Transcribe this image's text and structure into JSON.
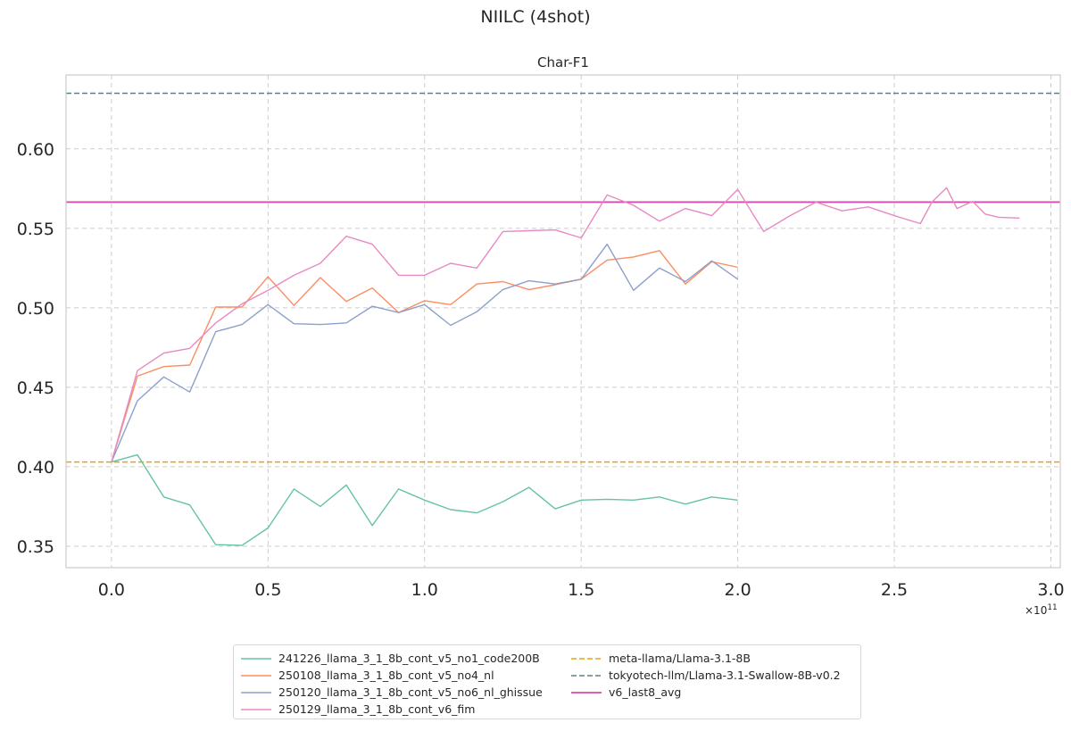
{
  "figure_title": "NIILC (4shot)",
  "chart_data": {
    "type": "line",
    "title": "Char-F1",
    "xlabel": "",
    "ylabel": "",
    "x_offset_label": "×10",
    "x_offset_exp": "11",
    "xlim": [
      -0.145,
      3.03
    ],
    "ylim": [
      0.3365,
      0.6465
    ],
    "xticks": [
      0.0,
      0.5,
      1.0,
      1.5,
      2.0,
      2.5,
      3.0
    ],
    "xtick_labels": [
      "0.0",
      "0.5",
      "1.0",
      "1.5",
      "2.0",
      "2.5",
      "3.0"
    ],
    "yticks": [
      0.35,
      0.4,
      0.45,
      0.5,
      0.55,
      0.6
    ],
    "ytick_labels": [
      "0.35",
      "0.40",
      "0.45",
      "0.50",
      "0.55",
      "0.60"
    ],
    "grid": true,
    "legend_position": "below",
    "series": [
      {
        "name": "241226_llama_3_1_8b_cont_v5_no1_code200B",
        "color": "#66c2a5",
        "dash": "solid",
        "x": [
          0.0,
          0.083,
          0.167,
          0.25,
          0.333,
          0.417,
          0.5,
          0.583,
          0.667,
          0.75,
          0.833,
          0.917,
          1.0,
          1.083,
          1.167,
          1.25,
          1.333,
          1.417,
          1.5,
          1.583,
          1.667,
          1.75,
          1.833,
          1.917,
          2.0
        ],
        "y": [
          0.403,
          0.4075,
          0.381,
          0.376,
          0.351,
          0.3505,
          0.3615,
          0.386,
          0.375,
          0.3885,
          0.363,
          0.386,
          0.379,
          0.373,
          0.371,
          0.378,
          0.387,
          0.3735,
          0.379,
          0.3795,
          0.379,
          0.381,
          0.3765,
          0.381,
          0.379
        ]
      },
      {
        "name": "250108_llama_3_1_8b_cont_v5_no4_nl",
        "color": "#fc8d62",
        "dash": "solid",
        "x": [
          0.0,
          0.083,
          0.167,
          0.25,
          0.333,
          0.417,
          0.5,
          0.583,
          0.667,
          0.75,
          0.833,
          0.917,
          1.0,
          1.083,
          1.167,
          1.25,
          1.333,
          1.417,
          1.5,
          1.583,
          1.667,
          1.75,
          1.833,
          1.917,
          2.0
        ],
        "y": [
          0.403,
          0.457,
          0.463,
          0.464,
          0.5005,
          0.5005,
          0.5195,
          0.5015,
          0.519,
          0.504,
          0.5125,
          0.497,
          0.5045,
          0.502,
          0.515,
          0.5165,
          0.5115,
          0.5145,
          0.518,
          0.53,
          0.532,
          0.536,
          0.515,
          0.529,
          0.5255
        ]
      },
      {
        "name": "250120_llama_3_1_8b_cont_v5_no6_nl_ghissue",
        "color": "#8da0cb",
        "dash": "solid",
        "x": [
          0.0,
          0.083,
          0.167,
          0.25,
          0.333,
          0.417,
          0.5,
          0.583,
          0.667,
          0.75,
          0.833,
          0.917,
          1.0,
          1.083,
          1.167,
          1.25,
          1.333,
          1.417,
          1.5,
          1.583,
          1.667,
          1.75,
          1.833,
          1.917,
          2.0
        ],
        "y": [
          0.403,
          0.4415,
          0.4565,
          0.447,
          0.485,
          0.4895,
          0.502,
          0.49,
          0.4895,
          0.4905,
          0.501,
          0.497,
          0.502,
          0.489,
          0.4975,
          0.5115,
          0.517,
          0.515,
          0.518,
          0.54,
          0.511,
          0.525,
          0.5165,
          0.5295,
          0.518
        ]
      },
      {
        "name": "250129_llama_3_1_8b_cont_v6_fim",
        "color": "#e78ac3",
        "dash": "solid",
        "x": [
          0.0,
          0.083,
          0.167,
          0.25,
          0.333,
          0.417,
          0.5,
          0.583,
          0.667,
          0.75,
          0.833,
          0.917,
          1.0,
          1.083,
          1.167,
          1.25,
          1.333,
          1.417,
          1.5,
          1.583,
          1.667,
          1.75,
          1.833,
          1.917,
          2.0,
          2.083,
          2.167,
          2.25,
          2.333,
          2.417,
          2.5,
          2.583,
          2.62,
          2.667,
          2.7,
          2.75,
          2.79,
          2.833,
          2.9
        ],
        "y": [
          0.403,
          0.4605,
          0.4715,
          0.4745,
          0.4905,
          0.5025,
          0.511,
          0.5205,
          0.528,
          0.545,
          0.54,
          0.5205,
          0.5205,
          0.528,
          0.525,
          0.548,
          0.5485,
          0.549,
          0.544,
          0.571,
          0.5645,
          0.5545,
          0.5625,
          0.558,
          0.5745,
          0.548,
          0.558,
          0.5665,
          0.561,
          0.5635,
          0.558,
          0.553,
          0.5665,
          0.5755,
          0.5625,
          0.567,
          0.559,
          0.557,
          0.5565
        ]
      }
    ],
    "reference_lines": [
      {
        "name": "meta-llama/Llama-3.1-8B",
        "value": 0.403,
        "color": "#e5a50a",
        "dash": "dashed"
      },
      {
        "name": "tokyotech-llm/Llama-3.1-Swallow-8B-v0.2",
        "value": 0.635,
        "color": "#5f7f86",
        "dash": "dashed"
      },
      {
        "name": "v6_last8_avg",
        "value": 0.5665,
        "color": "#d44aad",
        "dash": "solid"
      }
    ],
    "legend_order": [
      "241226_llama_3_1_8b_cont_v5_no1_code200B",
      "250108_llama_3_1_8b_cont_v5_no4_nl",
      "250120_llama_3_1_8b_cont_v5_no6_nl_ghissue",
      "250129_llama_3_1_8b_cont_v6_fim",
      "meta-llama/Llama-3.1-8B",
      "tokyotech-llm/Llama-3.1-Swallow-8B-v0.2",
      "v6_last8_avg"
    ]
  }
}
